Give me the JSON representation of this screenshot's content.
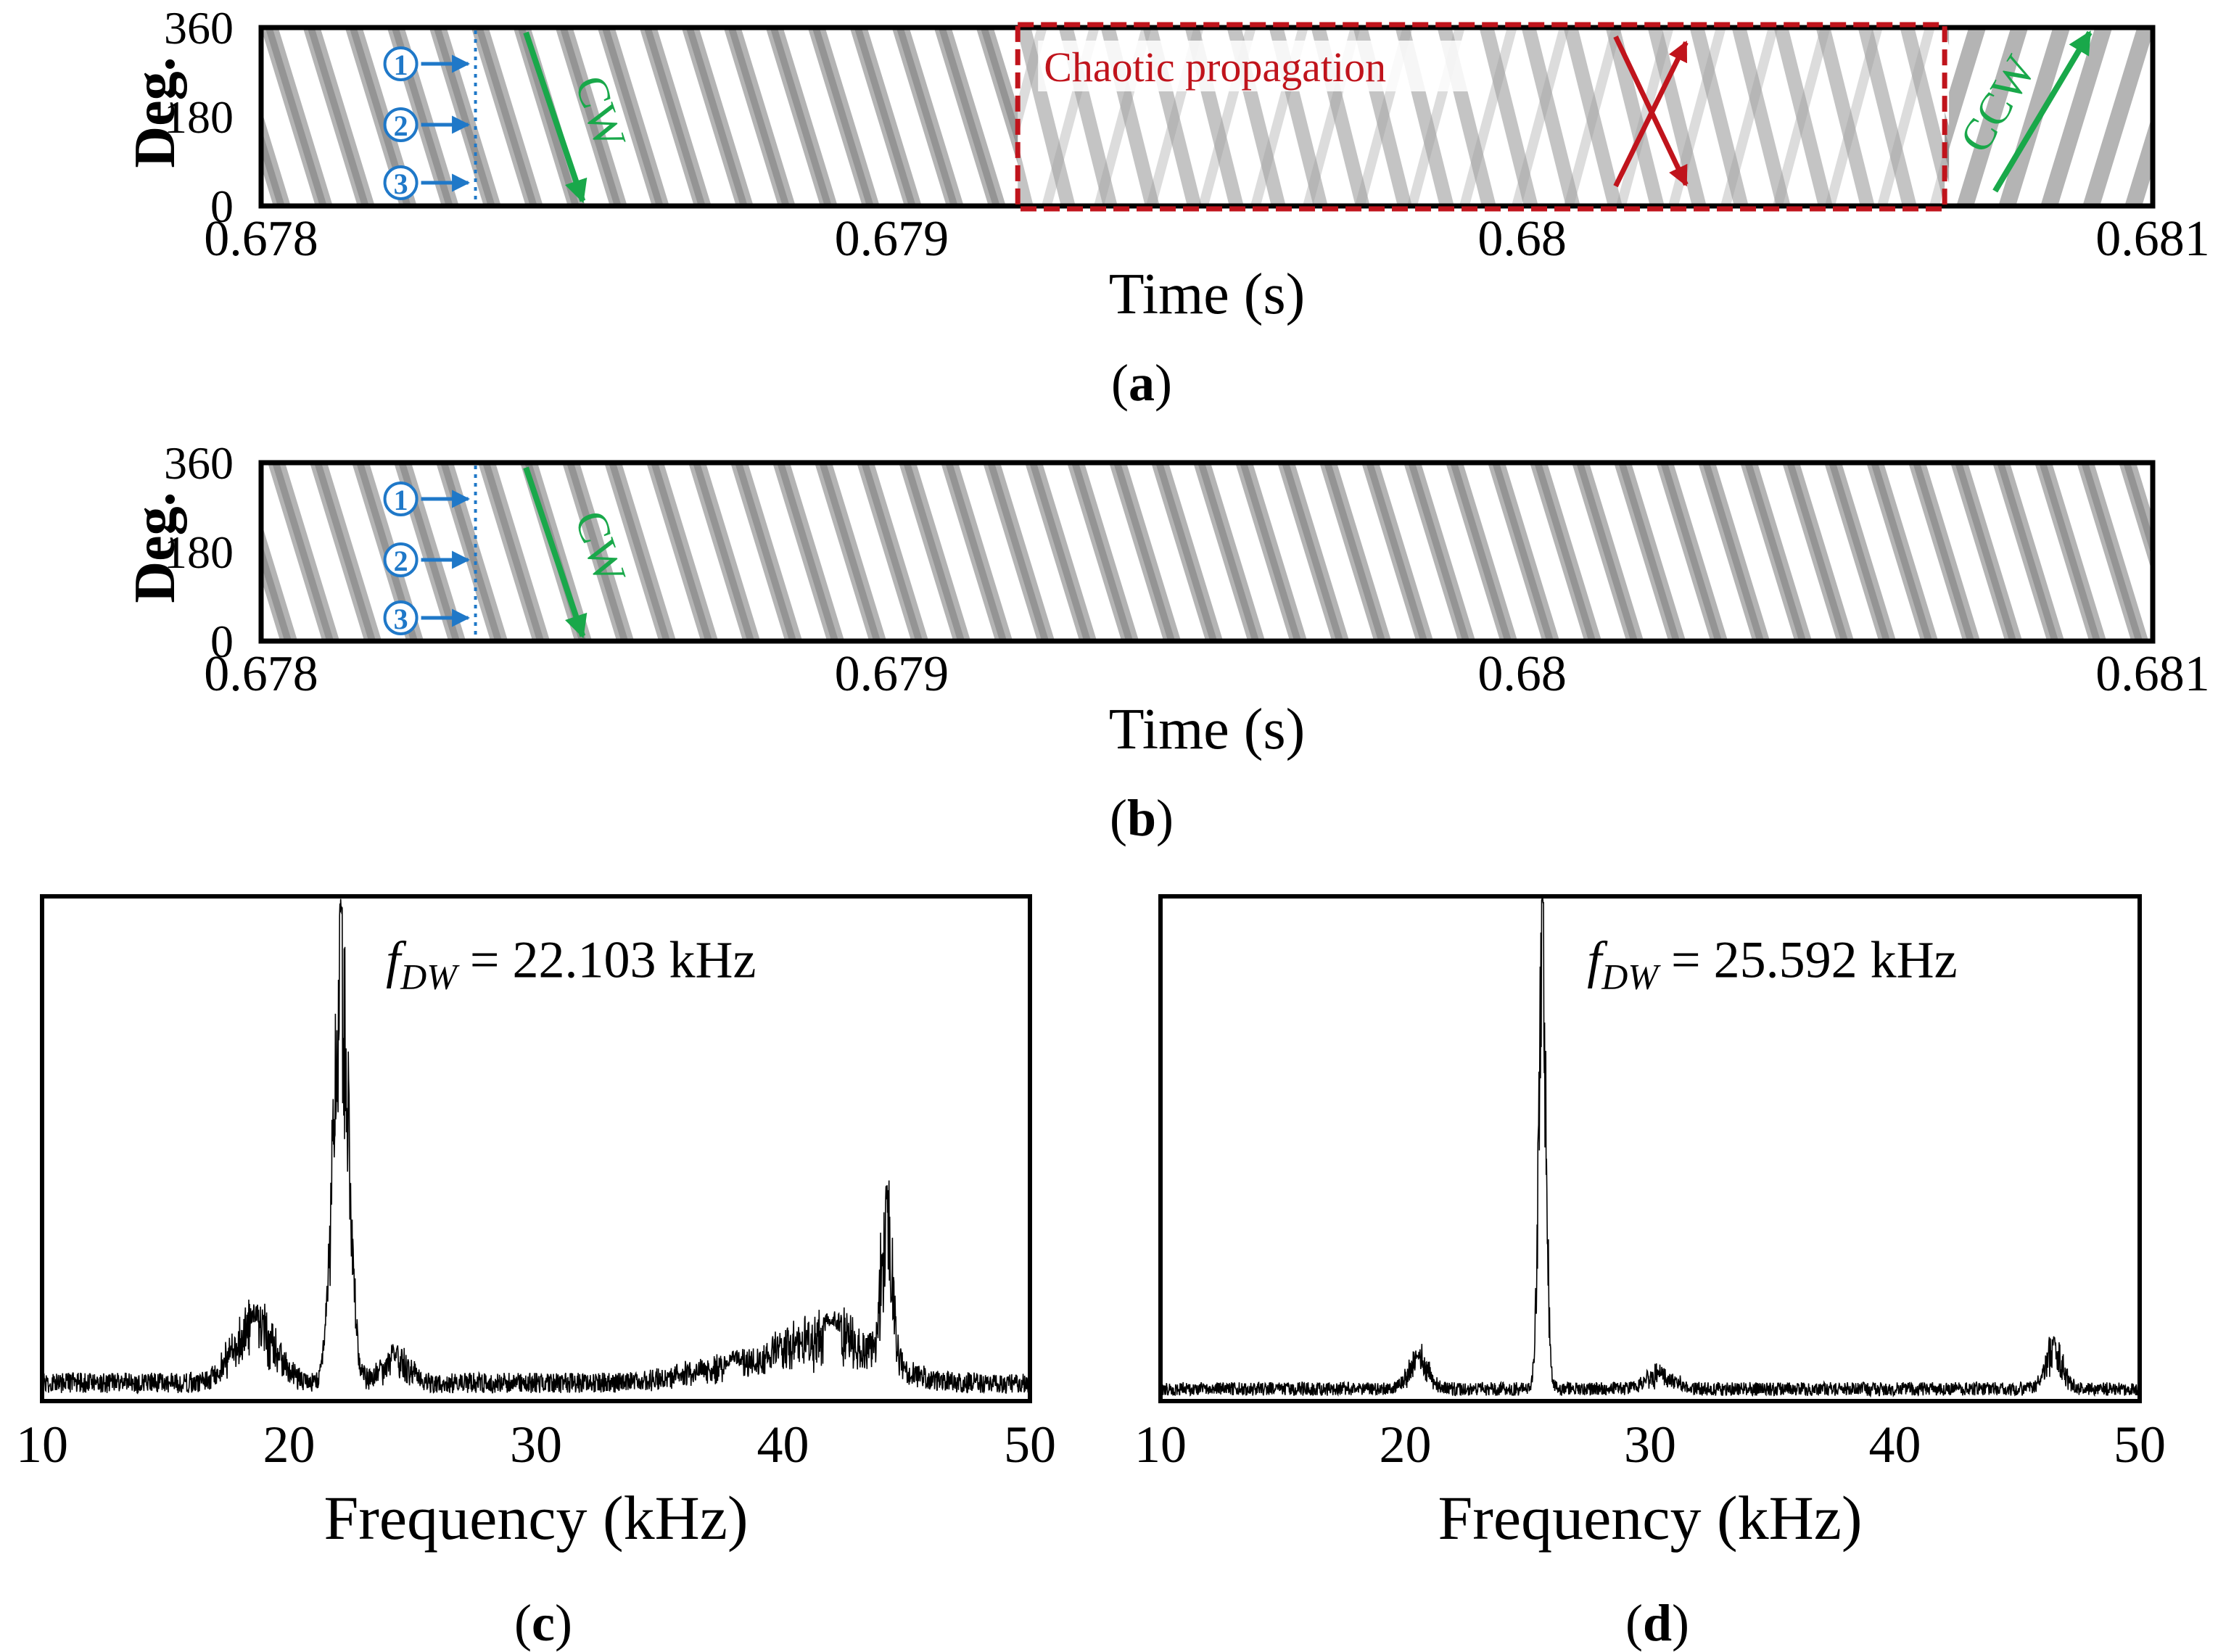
{
  "figure": {
    "colors": {
      "axis": "#000000",
      "annotation_blue": "#1f78c8",
      "annotation_green": "#19a84a",
      "annotation_red": "#c0141c",
      "stripe": "#8c8c8c"
    }
  },
  "chart_data": [
    {
      "panel": "a",
      "panel_label": "(a)",
      "type": "heatmap",
      "xlabel": "Time (s)",
      "ylabel": "Deg.",
      "xlim": [
        0.678,
        0.681
      ],
      "ylim": [
        0,
        360
      ],
      "x_ticks": [
        "0.678",
        "0.679",
        "0.68",
        "0.681"
      ],
      "y_ticks": [
        "0",
        "180",
        "360"
      ],
      "sensor_markers": [
        "①",
        "②",
        "③"
      ],
      "sensor_line_time": 0.67834,
      "annotations": [
        {
          "text": "CW",
          "color": "#19a84a",
          "time_start": 0.67842,
          "time_end": 0.67851,
          "deg_start": 350,
          "deg_end": 10
        },
        {
          "text": "Chaotic propagation",
          "color": "#c0141c",
          "box_time": [
            0.6792,
            0.68067
          ],
          "box_deg": [
            0,
            360
          ]
        },
        {
          "text": "CCW",
          "color": "#19a84a",
          "time_start": 0.68075,
          "time_end": 0.6809,
          "deg_start": 30,
          "deg_end": 350
        }
      ],
      "cross_arrows": {
        "color": "#c0141c",
        "center_time": 0.6802,
        "deg_range": [
          40,
          330
        ]
      },
      "stripe_direction": "CW (decreasing degree with time), chaotic in middle, CCW at end"
    },
    {
      "panel": "b",
      "panel_label": "(b)",
      "type": "heatmap",
      "xlabel": "Time (s)",
      "ylabel": "Deg.",
      "xlim": [
        0.678,
        0.681
      ],
      "ylim": [
        0,
        360
      ],
      "x_ticks": [
        "0.678",
        "0.679",
        "0.68",
        "0.681"
      ],
      "y_ticks": [
        "0",
        "180",
        "360"
      ],
      "sensor_markers": [
        "①",
        "②",
        "③"
      ],
      "sensor_line_time": 0.67834,
      "annotations": [
        {
          "text": "CW",
          "color": "#19a84a",
          "time_start": 0.67842,
          "time_end": 0.67851,
          "deg_start": 350,
          "deg_end": 10
        }
      ],
      "stripe_direction": "CW (decreasing degree with time) throughout"
    },
    {
      "panel": "c",
      "panel_label": "(c)",
      "type": "line",
      "xlabel": "Frequency (kHz)",
      "ylabel": "",
      "xlim": [
        10,
        50
      ],
      "ylim": [
        0,
        1
      ],
      "x_ticks": [
        "10",
        "20",
        "30",
        "40",
        "50"
      ],
      "annotation": {
        "f": "f",
        "sub": "DW",
        "value": " = 22.103 kHz"
      },
      "peak_frequency_khz": 22.103,
      "peaks": [
        {
          "x": 22.1,
          "y": 0.95,
          "width": 0.45
        },
        {
          "x": 44.2,
          "y": 0.33,
          "width": 0.35
        },
        {
          "x": 18.6,
          "y": 0.14,
          "width": 1.2
        },
        {
          "x": 24.3,
          "y": 0.06,
          "width": 0.8
        },
        {
          "x": 42.0,
          "y": 0.12,
          "width": 2.5
        },
        {
          "x": 38.0,
          "y": 0.04,
          "width": 2.5
        }
      ],
      "noise_floor": 0.045
    },
    {
      "panel": "d",
      "panel_label": "(d)",
      "type": "line",
      "xlabel": "Frequency (kHz)",
      "ylabel": "",
      "xlim": [
        10,
        50
      ],
      "ylim": [
        0,
        1
      ],
      "x_ticks": [
        "10",
        "20",
        "30",
        "40",
        "50"
      ],
      "annotation": {
        "f": "f",
        "sub": "DW",
        "value": " = 25.592 kHz"
      },
      "peak_frequency_khz": 25.592,
      "peaks": [
        {
          "x": 25.6,
          "y": 0.98,
          "width": 0.22
        },
        {
          "x": 20.5,
          "y": 0.07,
          "width": 0.6
        },
        {
          "x": 46.5,
          "y": 0.1,
          "width": 0.5
        },
        {
          "x": 30.4,
          "y": 0.035,
          "width": 0.8
        }
      ],
      "noise_floor": 0.03
    }
  ]
}
